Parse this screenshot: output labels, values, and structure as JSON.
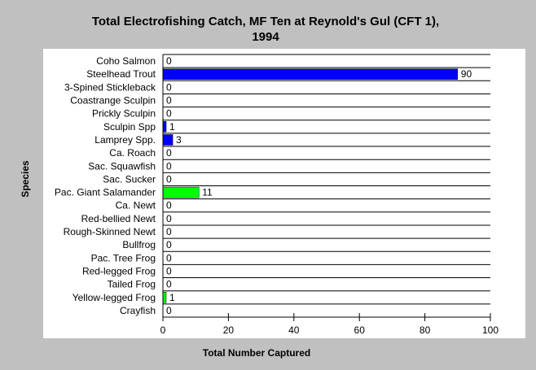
{
  "chart_data": {
    "type": "bar",
    "orientation": "horizontal",
    "title": [
      "Total Electrofishing Catch, MF Ten at Reynold's Gul (CFT 1),",
      "1994"
    ],
    "xlabel": "Total Number Captured",
    "ylabel": "Species",
    "xlim": [
      0,
      100
    ],
    "xticks": [
      0,
      20,
      40,
      60,
      80,
      100
    ],
    "grid": "horizontal-row-lines",
    "legend": "none",
    "categories": [
      "Coho Salmon",
      "Steelhead Trout",
      "3-Spined Stickleback",
      "Coastrange Sculpin",
      "Prickly Sculpin",
      "Sculpin Spp",
      "Lamprey Spp.",
      "Ca. Roach",
      "Sac. Squawfish",
      "Sac. Sucker",
      "Pac. Giant Salamander",
      "Ca. Newt",
      "Red-bellied Newt",
      "Rough-Skinned Newt",
      "Bullfrog",
      "Pac. Tree Frog",
      "Red-legged Frog",
      "Tailed Frog",
      "Yellow-legged Frog",
      "Crayfish"
    ],
    "values": [
      0,
      90,
      0,
      0,
      0,
      1,
      3,
      0,
      0,
      0,
      11,
      0,
      0,
      0,
      0,
      0,
      0,
      0,
      1,
      0
    ],
    "colors": [
      "#0000ff",
      "#0000ff",
      "#0000ff",
      "#0000ff",
      "#0000ff",
      "#0000ff",
      "#0000ff",
      "#0000ff",
      "#0000ff",
      "#0000ff",
      "#00ff00",
      "#00ff00",
      "#00ff00",
      "#00ff00",
      "#00ff00",
      "#00ff00",
      "#00ff00",
      "#00ff00",
      "#00ff00",
      "#00ff00"
    ],
    "plot_background": "#ffffff",
    "page_background": "#c0c0c0"
  }
}
